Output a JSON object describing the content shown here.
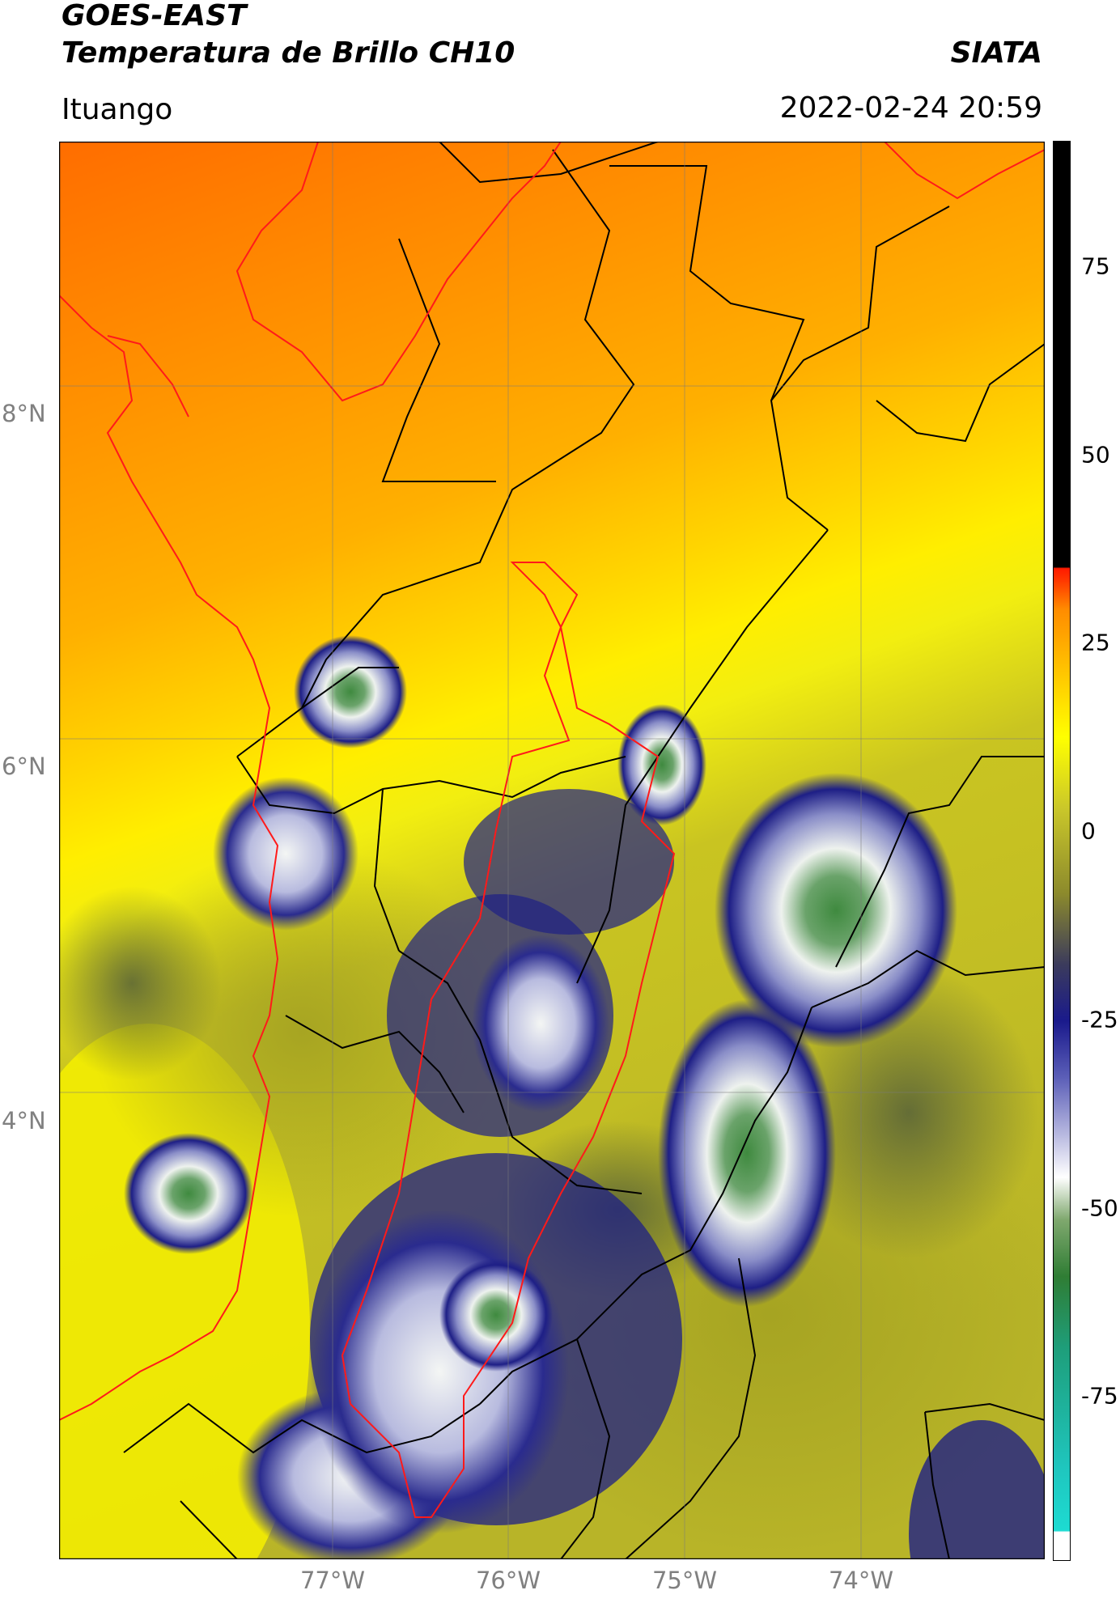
{
  "header": {
    "title_line1": "GOES-EAST",
    "title_line2": "Temperatura de Brillo CH10",
    "brand": "SIATA",
    "location": "Ituango",
    "timestamp": "2022-02-24 20:59"
  },
  "map": {
    "lat_labels": [
      "8°N",
      "6°N",
      "4°N"
    ],
    "lon_labels": [
      "77°W",
      "76°W",
      "75°W",
      "74°W"
    ]
  },
  "colorbar": {
    "ticks": [
      "75",
      "50",
      "25",
      "0",
      "-25",
      "-50",
      "-75"
    ],
    "colors": {
      "cold_cyan": "#19d8d0",
      "deep_green": "#2e7d32",
      "white": "#ffffff",
      "blue": "#1a1a8c",
      "olive": "#a0a020",
      "yellow": "#ffff00",
      "orange": "#ff8c00",
      "red": "#ff1a00",
      "black": "#000000"
    }
  }
}
